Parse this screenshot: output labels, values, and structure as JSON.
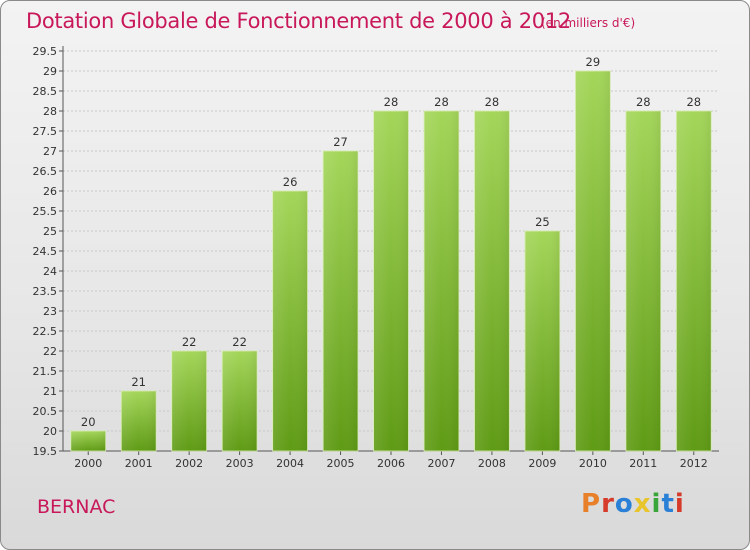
{
  "header": {
    "title": "Dotation Globale de Fonctionnement de 2000 à 2012",
    "unit": "(en milliers d'€)"
  },
  "footer": {
    "commune": "BERNAC",
    "logo_text": "Proxiti"
  },
  "colors": {
    "title": "#c8185a",
    "bar_light": "#9fd14a",
    "bar_dark": "#5f9b15",
    "logo": [
      "#e8802a",
      "#d63a2a",
      "#2a7fd6",
      "#e8c52a",
      "#3aa63a",
      "#2a7fd6",
      "#d63a2a"
    ]
  },
  "chart_data": {
    "type": "bar",
    "title": "Dotation Globale de Fonctionnement de 2000 à 2012",
    "xlabel": "",
    "ylabel": "",
    "categories": [
      "2000",
      "2001",
      "2002",
      "2003",
      "2004",
      "2005",
      "2006",
      "2007",
      "2008",
      "2009",
      "2010",
      "2011",
      "2012"
    ],
    "values": [
      20,
      21,
      22,
      22,
      26,
      27,
      28,
      28,
      28,
      25,
      29,
      28,
      28
    ],
    "ylim": [
      19.5,
      29.5
    ],
    "yticks": [
      "19.5",
      "20",
      "20.5",
      "21",
      "21.5",
      "22",
      "22.5",
      "23",
      "23.5",
      "24",
      "24.5",
      "25",
      "25.5",
      "26",
      "26.5",
      "27",
      "27.5",
      "28",
      "28.5",
      "29",
      "29.5"
    ],
    "grid": true,
    "legend": "none"
  }
}
